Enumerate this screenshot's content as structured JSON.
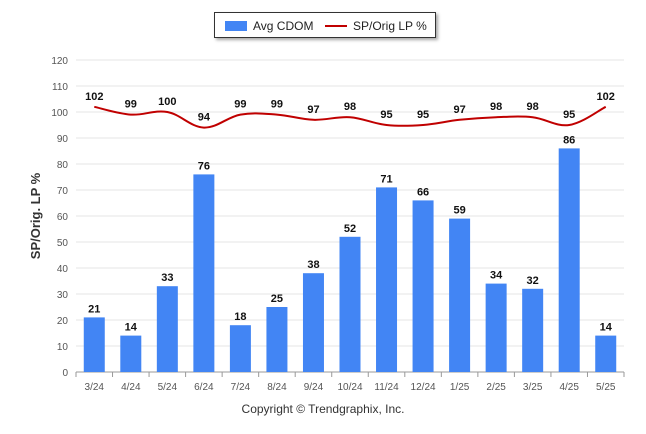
{
  "legend": {
    "bar_label": "Avg CDOM",
    "line_label": "SP/Orig LP %"
  },
  "footer": {
    "copyright": "Copyright © Trendgraphix, Inc."
  },
  "colors": {
    "bar": "#4285f4",
    "line": "#c00000",
    "grid": "#e6e6e6",
    "axis_text": "#555555"
  },
  "chart_data": {
    "type": "bar",
    "categories": [
      "3/24",
      "4/24",
      "5/24",
      "6/24",
      "7/24",
      "8/24",
      "9/24",
      "10/24",
      "11/24",
      "12/24",
      "1/25",
      "2/25",
      "3/25",
      "4/25",
      "5/25"
    ],
    "series": [
      {
        "name": "Avg CDOM",
        "type": "bar",
        "values": [
          21,
          14,
          33,
          76,
          18,
          25,
          38,
          52,
          71,
          66,
          59,
          34,
          32,
          86,
          14
        ]
      },
      {
        "name": "SP/Orig LP %",
        "type": "line",
        "values": [
          102,
          99,
          100,
          94,
          99,
          99,
          97,
          98,
          95,
          95,
          97,
          98,
          98,
          95,
          102
        ]
      }
    ],
    "ylabel": "SP/Orig. LP %",
    "yticks": [
      0,
      10,
      20,
      30,
      40,
      50,
      60,
      70,
      80,
      90,
      100,
      110,
      120
    ],
    "ylim": [
      0,
      120
    ],
    "grid": true,
    "legend_position": "top-center"
  }
}
